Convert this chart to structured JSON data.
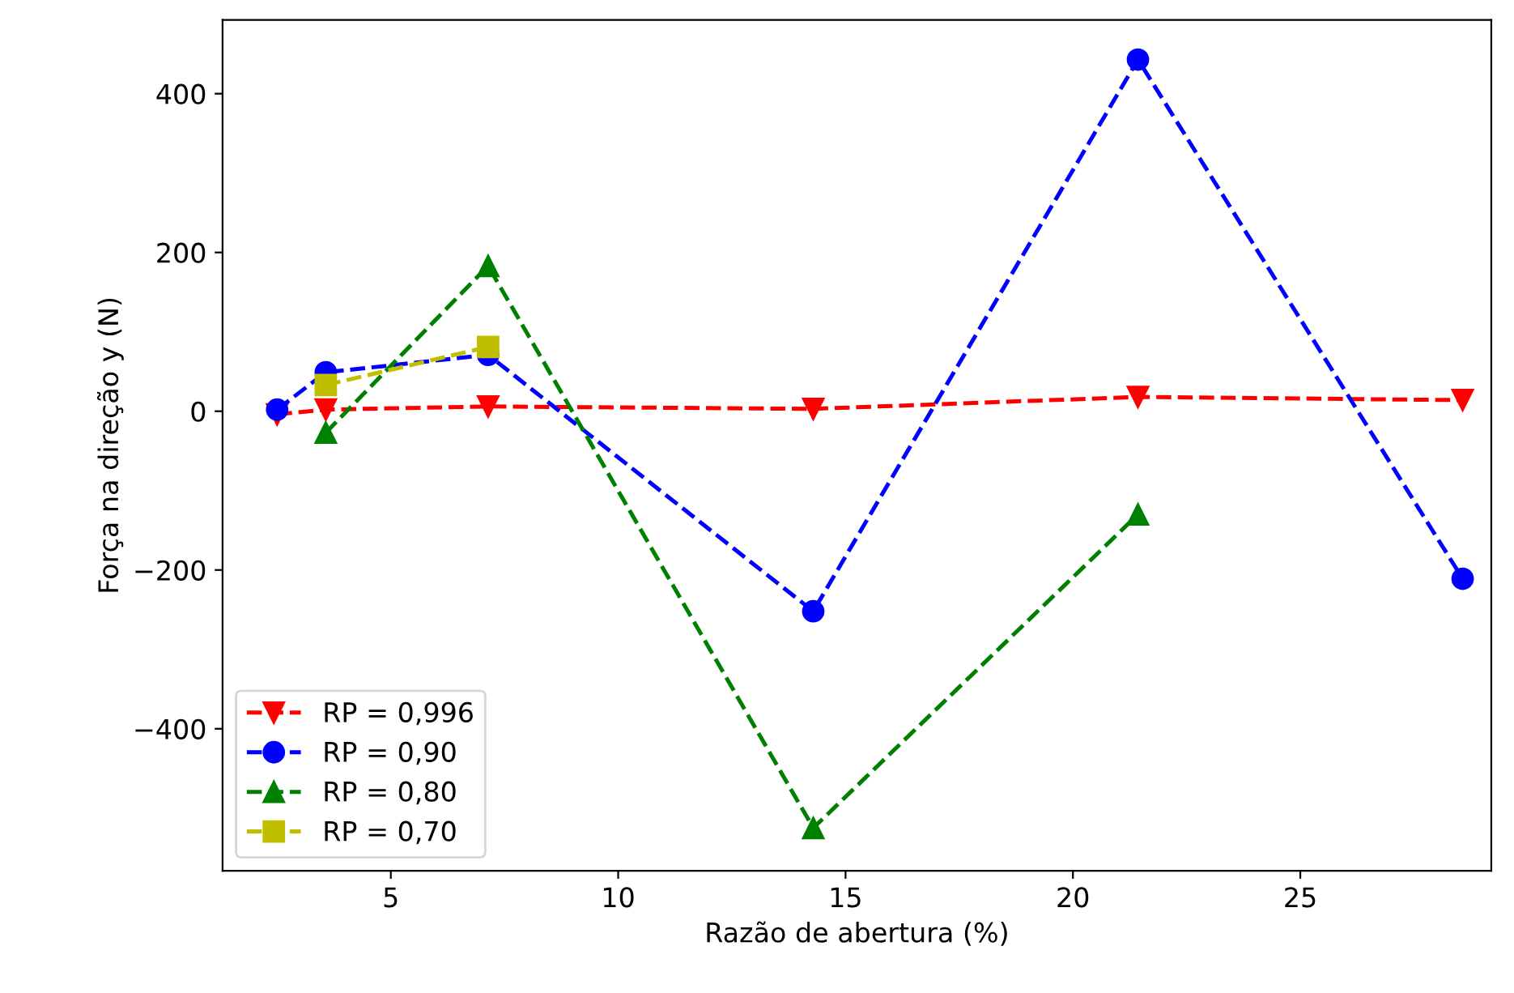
{
  "chart_data": {
    "type": "line",
    "xlabel": "Razão de abertura (%)",
    "ylabel": "Força na direção y (N)",
    "xlim": [
      1.3,
      29.2
    ],
    "ylim": [
      -579,
      493
    ],
    "xticks": [
      5,
      10,
      15,
      20,
      25
    ],
    "yticks": [
      {
        "value": -400,
        "label": "−400"
      },
      {
        "value": -200,
        "label": "−200"
      },
      0,
      200,
      400
    ],
    "grid": false,
    "legend": "bottom left",
    "line_style": "dashed",
    "series": [
      {
        "name": "RP = 0,996",
        "color": "#ff0000",
        "marker": "triangle_down",
        "x": [
          2.5,
          3.57,
          7.14,
          14.29,
          21.43,
          28.57
        ],
        "values": [
          -4,
          2,
          6,
          3,
          18,
          14
        ]
      },
      {
        "name": "RP = 0,90",
        "color": "#0000ff",
        "marker": "circle",
        "x": [
          2.5,
          3.57,
          7.14,
          14.29,
          21.43,
          28.57
        ],
        "values": [
          2,
          49,
          71,
          -252,
          443,
          -211
        ]
      },
      {
        "name": "RP = 0,80",
        "color": "#008000",
        "marker": "triangle",
        "x": [
          3.57,
          7.14,
          14.29,
          21.43
        ],
        "values": [
          -27,
          183,
          -525,
          -130
        ]
      },
      {
        "name": "RP = 0,70",
        "color": "#bfbf00",
        "marker": "square",
        "x": [
          3.57,
          7.14
        ],
        "values": [
          33,
          81
        ]
      }
    ]
  }
}
